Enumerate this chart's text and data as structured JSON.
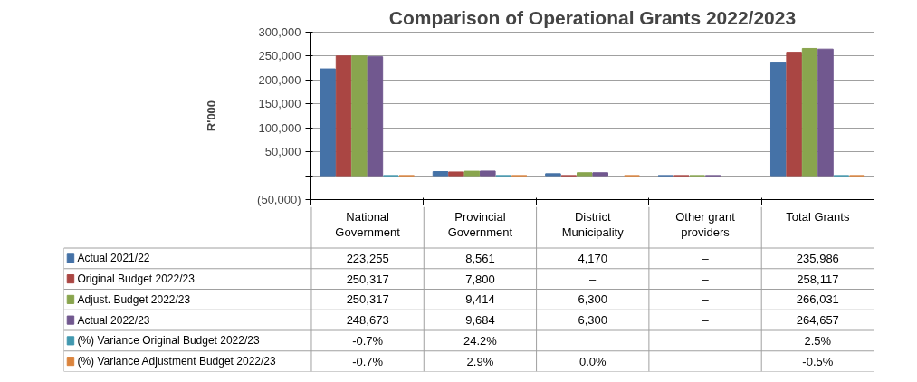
{
  "chart_data": {
    "type": "bar",
    "title": "Comparison of Operational Grants 2022/2023",
    "ylabel": "R'000",
    "categories": [
      "National Government",
      "Provincial Government",
      "District Municipality",
      "Other grant providers",
      "Total Grants"
    ],
    "series": [
      {
        "name": "Actual 2021/22",
        "color": "#4572a7",
        "values": [
          223255,
          8561,
          4170,
          0,
          235986
        ],
        "value_labels": [
          "223,255",
          "8,561",
          "4,170",
          "–",
          "235,986"
        ]
      },
      {
        "name": "Original Budget 2022/23",
        "color": "#aa4643",
        "values": [
          250317,
          7800,
          0,
          0,
          258117
        ],
        "value_labels": [
          "250,317",
          "7,800",
          "–",
          "–",
          "258,117"
        ]
      },
      {
        "name": "Adjust. Budget 2022/23",
        "color": "#89a54e",
        "values": [
          250317,
          9414,
          6300,
          0,
          266031
        ],
        "value_labels": [
          "250,317",
          "9,414",
          "6,300",
          "–",
          "266,031"
        ]
      },
      {
        "name": "Actual 2022/23",
        "color": "#71588f",
        "values": [
          248673,
          9684,
          6300,
          0,
          264657
        ],
        "value_labels": [
          "248,673",
          "9,684",
          "6,300",
          "–",
          "264,657"
        ]
      },
      {
        "name": "(%) Variance Original Budget 2022/23",
        "color": "#4198af",
        "values": [
          -0.7,
          24.2,
          null,
          null,
          2.5
        ],
        "value_labels": [
          "-0.7%",
          "24.2%",
          null,
          null,
          "2.5%"
        ]
      },
      {
        "name": "(%) Variance Adjustment Budget 2022/23",
        "color": "#db843d",
        "values": [
          -0.7,
          2.9,
          0.0,
          null,
          -0.5
        ],
        "value_labels": [
          "-0.7%",
          "2.9%",
          "0.0%",
          null,
          "-0.5%"
        ]
      }
    ],
    "ylim": [
      -50000,
      300000
    ],
    "yticks": [
      {
        "value": -50000,
        "label": "(50,000)"
      },
      {
        "value": 0,
        "label": "–"
      },
      {
        "value": 50000,
        "label": "50,000"
      },
      {
        "value": 100000,
        "label": "100,000"
      },
      {
        "value": 150000,
        "label": "150,000"
      },
      {
        "value": 200000,
        "label": "200,000"
      },
      {
        "value": 250000,
        "label": "250,000"
      },
      {
        "value": 300000,
        "label": "300,000"
      }
    ],
    "grid": "y",
    "tick_labels": "y",
    "legend": "bottom"
  }
}
